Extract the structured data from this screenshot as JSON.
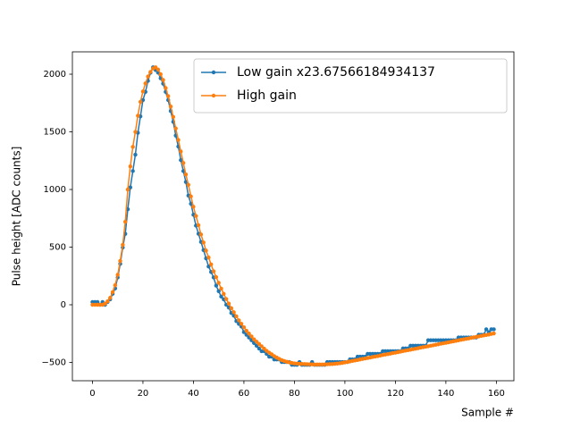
{
  "chart_data": {
    "type": "line",
    "xlabel": "Sample #",
    "ylabel": "Pulse height [ADC counts]",
    "x": [
      0,
      1,
      2,
      3,
      4,
      5,
      6,
      7,
      8,
      9,
      10,
      11,
      12,
      13,
      14,
      15,
      16,
      17,
      18,
      19,
      20,
      21,
      22,
      23,
      24,
      25,
      26,
      27,
      28,
      29,
      30,
      31,
      32,
      33,
      34,
      35,
      36,
      37,
      38,
      39,
      40,
      41,
      42,
      43,
      44,
      45,
      46,
      47,
      48,
      49,
      50,
      51,
      52,
      53,
      54,
      55,
      56,
      57,
      58,
      59,
      60,
      61,
      62,
      63,
      64,
      65,
      66,
      67,
      68,
      69,
      70,
      71,
      72,
      73,
      74,
      75,
      76,
      77,
      78,
      79,
      80,
      81,
      82,
      83,
      84,
      85,
      86,
      87,
      88,
      89,
      90,
      91,
      92,
      93,
      94,
      95,
      96,
      97,
      98,
      99,
      100,
      101,
      102,
      103,
      104,
      105,
      106,
      107,
      108,
      109,
      110,
      111,
      112,
      113,
      114,
      115,
      116,
      117,
      118,
      119,
      120,
      121,
      122,
      123,
      124,
      125,
      126,
      127,
      128,
      129,
      130,
      131,
      132,
      133,
      134,
      135,
      136,
      137,
      138,
      139,
      140,
      141,
      142,
      143,
      144,
      145,
      146,
      147,
      148,
      149,
      150,
      151,
      152,
      153,
      154,
      155,
      156,
      157,
      158,
      159
    ],
    "series": [
      {
        "name": "Low gain x23.67566184934137",
        "color": "#1f77b4",
        "values": [
          24,
          24,
          24,
          0,
          24,
          0,
          24,
          47,
          95,
          142,
          237,
          355,
          497,
          615,
          829,
          1018,
          1160,
          1302,
          1492,
          1634,
          1776,
          1847,
          1942,
          2013,
          2060,
          2036,
          2013,
          1965,
          1918,
          1847,
          1776,
          1681,
          1587,
          1468,
          1373,
          1255,
          1160,
          1065,
          947,
          876,
          781,
          687,
          616,
          545,
          474,
          403,
          332,
          284,
          237,
          166,
          118,
          71,
          47,
          0,
          -24,
          -71,
          -95,
          -142,
          -166,
          -189,
          -237,
          -260,
          -284,
          -308,
          -332,
          -355,
          -379,
          -403,
          -403,
          -426,
          -450,
          -450,
          -474,
          -474,
          -474,
          -497,
          -497,
          -497,
          -497,
          -521,
          -521,
          -521,
          -497,
          -521,
          -521,
          -521,
          -521,
          -497,
          -521,
          -521,
          -521,
          -521,
          -521,
          -497,
          -497,
          -497,
          -497,
          -497,
          -497,
          -497,
          -497,
          -497,
          -474,
          -474,
          -474,
          -450,
          -450,
          -450,
          -450,
          -426,
          -426,
          -426,
          -426,
          -426,
          -426,
          -403,
          -403,
          -403,
          -403,
          -403,
          -403,
          -403,
          -403,
          -379,
          -379,
          -379,
          -355,
          -355,
          -355,
          -355,
          -355,
          -355,
          -355,
          -308,
          -308,
          -308,
          -308,
          -308,
          -308,
          -308,
          -308,
          -308,
          -308,
          -308,
          -308,
          -284,
          -284,
          -284,
          -284,
          -284,
          -284,
          -284,
          -284,
          -260,
          -260,
          -260,
          -213,
          -237,
          -213,
          -213
        ]
      },
      {
        "name": "High gain",
        "color": "#ff7f0e",
        "values": [
          0,
          0,
          0,
          0,
          0,
          10,
          30,
          60,
          110,
          170,
          260,
          380,
          520,
          720,
          1000,
          1200,
          1370,
          1500,
          1640,
          1760,
          1850,
          1920,
          1980,
          2020,
          2050,
          2060,
          2040,
          2000,
          1950,
          1880,
          1810,
          1720,
          1630,
          1530,
          1430,
          1330,
          1230,
          1130,
          1040,
          940,
          850,
          770,
          690,
          610,
          540,
          470,
          410,
          350,
          290,
          240,
          190,
          140,
          95,
          50,
          10,
          -30,
          -65,
          -100,
          -135,
          -165,
          -195,
          -225,
          -250,
          -275,
          -300,
          -320,
          -340,
          -360,
          -380,
          -400,
          -415,
          -430,
          -445,
          -458,
          -470,
          -480,
          -488,
          -495,
          -500,
          -505,
          -508,
          -510,
          -512,
          -513,
          -514,
          -515,
          -516,
          -517,
          -518,
          -518,
          -518,
          -518,
          -517,
          -516,
          -515,
          -514,
          -512,
          -510,
          -507,
          -504,
          -500,
          -496,
          -492,
          -487,
          -483,
          -479,
          -474,
          -470,
          -466,
          -462,
          -458,
          -453,
          -449,
          -445,
          -441,
          -436,
          -432,
          -428,
          -424,
          -419,
          -415,
          -411,
          -407,
          -402,
          -398,
          -394,
          -390,
          -385,
          -381,
          -377,
          -372,
          -368,
          -364,
          -360,
          -355,
          -351,
          -347,
          -343,
          -338,
          -334,
          -330,
          -326,
          -321,
          -317,
          -313,
          -309,
          -304,
          -300,
          -296,
          -292,
          -287,
          -283,
          -279,
          -275,
          -270,
          -266,
          -262,
          -258,
          -253,
          -249
        ]
      }
    ],
    "xlim": [
      -7.95,
      166.95
    ],
    "xticks": [
      0,
      20,
      40,
      60,
      80,
      100,
      120,
      140,
      160
    ],
    "ylim": [
      -659,
      2194
    ],
    "yticks": [
      {
        "value": -500,
        "label": "−500"
      },
      0,
      500,
      1000,
      1500,
      2000
    ],
    "legend": "upper right",
    "grid": false
  }
}
